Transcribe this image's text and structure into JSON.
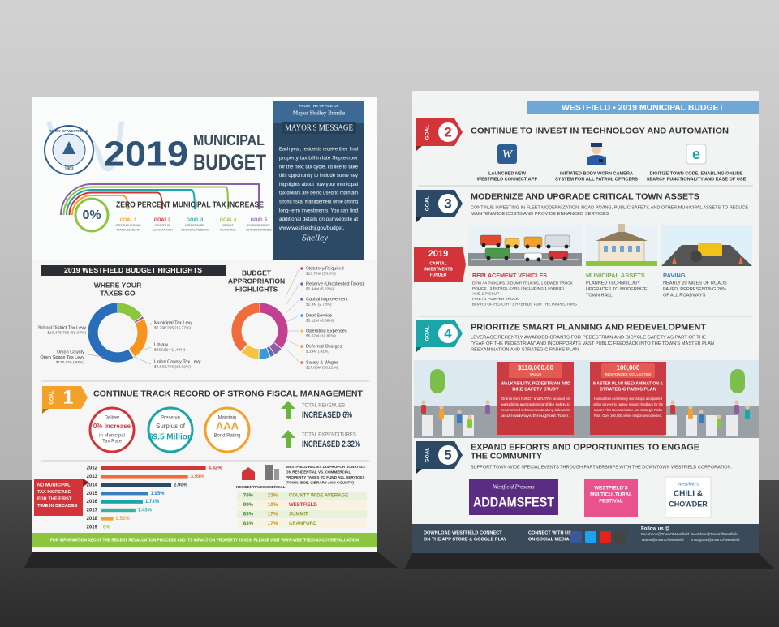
{
  "left_flyer": {
    "seal": {
      "name": "TOWN OF WESTFIELD",
      "year": "1903"
    },
    "title": {
      "year": "2019",
      "line1": "MUNICIPAL",
      "line2": "BUDGET"
    },
    "mayor_message": {
      "from": "FROM THE OFFICE OF",
      "name": "Mayor Shelley Brindle",
      "heading": "MAYOR'S MESSAGE",
      "body": [
        "Each year, residents receive their final",
        "property tax bill in late September",
        "for the next tax cycle. I'd like to take",
        "this opportunity to include some key",
        "highlights about how your municipal",
        "tax dollars are being used to maintain",
        "strong fiscal management while driving",
        "long-term investments. You can find",
        "additional details on our website at",
        "www.westfieldnj.gov/budget."
      ],
      "signature": "Shelley"
    },
    "tax_rate": {
      "badge": "0%",
      "heading": "ZERO PERCENT MUNICIPAL TAX INCREASE",
      "goals": [
        {
          "label": "GOAL 1",
          "text": [
            "STRONG FISCAL",
            "MANAGEMENT"
          ],
          "color": "#f4a12b"
        },
        {
          "label": "GOAL 2",
          "text": [
            "INVEST IN",
            "AUTOMATION"
          ],
          "color": "#d2343a"
        },
        {
          "label": "GOAL 3",
          "text": [
            "MODERNIZE",
            "CRITICAL ASSETS"
          ],
          "color": "#1aa5a8"
        },
        {
          "label": "GOAL 4",
          "text": [
            "SMART",
            "PLANNING"
          ],
          "color": "#8cc63f"
        },
        {
          "label": "GOAL 5",
          "text": [
            "ENGAGEMENT",
            "OPPORTUNITIES"
          ],
          "color": "#8e5ea8"
        }
      ]
    },
    "highlights": {
      "banner": "2019 WESTFIELD BUDGET HIGHLIGHTS",
      "taxes": {
        "title": [
          "WHERE YOUR",
          "TAXES GO"
        ],
        "items": [
          {
            "name": [
              "Municipal Tax Levy"
            ],
            "amount": "$2,796,295",
            "value": 15.77,
            "value_label": "(15.77%)",
            "color": "#8cc63f"
          },
          {
            "name": [
              "Library"
            ],
            "amount": "$263,514",
            "value": 1.49,
            "value_label": "(1.49%)",
            "color": "#9b59b6"
          },
          {
            "name": [
              "Union County Tax Levy"
            ],
            "amount": "$4,083,766",
            "value": 23.02,
            "value_label": "(23.02%)",
            "color": "#f7941d"
          },
          {
            "name": [
              "Union County",
              "Open Space Tax Levy"
            ],
            "amount": "$116,046",
            "value": 0.65,
            "value_label": "(.65%)",
            "color": "#f9d423"
          },
          {
            "name": [
              "School District Tax Levy"
            ],
            "amount": "$10,478,790",
            "value": 59.07,
            "value_label": "(59.07%)",
            "color": "#2a6ebb"
          }
        ]
      },
      "appropriations": {
        "title": [
          "BUDGET",
          "APPROPRIATION",
          "HIGHLIGHTS"
        ],
        "items": [
          {
            "name": [
              "Statutory/Required"
            ],
            "amount": "$16.72M",
            "value": 35.8,
            "value_label": "(35.8%)",
            "color": "#c2408f"
          },
          {
            "name": [
              "Reserve (Uncollected Taxes)"
            ],
            "amount": "$2.44M",
            "value": 5.22,
            "value_label": "(5.22%)",
            "color": "#8e5ea8"
          },
          {
            "name": [
              "Capital Improvement"
            ],
            "amount": "$1.3M",
            "value": 2.78,
            "value_label": "(2.78%)",
            "color": "#5b6fb5"
          },
          {
            "name": [
              "Debt Service"
            ],
            "amount": "$3.12M",
            "value": 6.68,
            "value_label": "(6.68%)",
            "color": "#3a9ad9"
          },
          {
            "name": [
              "Operating Expenses"
            ],
            "amount": "$5.07M",
            "value": 10.87,
            "value_label": "(10.87%)",
            "color": "#f6c343"
          },
          {
            "name": [
              "Deferred Charges"
            ],
            "amount": "$.19M",
            "value": 0.41,
            "value_label": "(.41%)",
            "color": "#f7941d"
          },
          {
            "name": [
              "Salary & Wages"
            ],
            "amount": "$17.85M",
            "value": 38.22,
            "value_label": "(38.22%)",
            "color": "#f26b3a"
          }
        ]
      }
    },
    "goal_1": {
      "tag": "GOAL",
      "number": "1",
      "heading": "CONTINUE TRACK RECORD OF STRONG FISCAL MANAGEMENT",
      "stats": [
        {
          "top": "Deliver",
          "main": "0% Increase",
          "bottom": [
            "in Municipal",
            "Tax Rate"
          ],
          "color": "#d2343a"
        },
        {
          "top": "Preserve",
          "main": "Surplus of",
          "bottom": [
            "$9.5 Million"
          ],
          "color": "#1aa5a8"
        },
        {
          "top": "Maintain",
          "main": "AAA",
          "bottom": [
            "Bond Rating"
          ],
          "color": "#f4a12b"
        }
      ],
      "totals": [
        {
          "label": "TOTAL REVENUES",
          "value": "INCREASED 6%"
        },
        {
          "label": "TOTAL EXPENDITURES",
          "value": "INCREASED 2.32%"
        }
      ]
    },
    "tax_history": {
      "note": [
        "NO MUNICIPAL",
        "TAX INCREASE",
        "FOR THE FIRST",
        "TIME IN DECADES"
      ],
      "categories": [
        "2012",
        "2013",
        "2014",
        "2015",
        "2016",
        "2017",
        "2018",
        "2019"
      ],
      "values": [
        4.32,
        3.59,
        2.9,
        1.95,
        1.73,
        1.43,
        0.52,
        0
      ],
      "value_labels": [
        "4.32%",
        "3.59%",
        "2.90%",
        "1.95%",
        "1.73%",
        "1.43%",
        "0.52%",
        "0%"
      ],
      "colors": [
        "#d2343a",
        "#f26b3a",
        "#2c4a66",
        "#3a7cc0",
        "#1aa5a8",
        "#3ab0a0",
        "#f4a12b",
        "#8cc63f"
      ]
    },
    "property_tax": {
      "note": [
        "WESTFIELD RELIES DISPROPORTIONATELY",
        "ON RESIDENTIAL VS. COMMERCIAL",
        "PROPERTY TAXES TO FUND ALL SERVICES",
        "(TOWN, BOE, LIBRARY AND COUNTY)"
      ],
      "headers": [
        "RESIDENTIAL",
        "COMMERCIAL"
      ],
      "rows": [
        [
          "76%",
          "23%",
          "COUNTY WIDE AVERAGE"
        ],
        [
          "90%",
          "10%",
          "WESTFIELD"
        ],
        [
          "83%",
          "17%",
          "SUMMIT"
        ],
        [
          "83%",
          "17%",
          "CRANFORD"
        ]
      ]
    },
    "footer": "FOR INFORMATION ABOUT THE RECENT REVALUATION PROCESS AND ITS IMPACT ON PROPERTY TAXES, PLEASE VISIT WWW.WESTFIELDNJ.GOV/REVALUATION"
  },
  "right_flyer": {
    "header": "WESTFIELD • 2019 MUNICIPAL BUDGET",
    "goal_2": {
      "tag": "GOAL",
      "number": "2",
      "heading": "CONTINUE TO INVEST IN TECHNOLOGY AND AUTOMATION",
      "items": [
        {
          "icon": "W",
          "text": [
            "LAUNCHED NEW",
            "WESTFIELD CONNECT APP"
          ]
        },
        {
          "text": [
            "INITIATED BODY-WORN CAMERA",
            "SYSTEM FOR ALL PATROL OFFICERS"
          ]
        },
        {
          "icon": "e",
          "text": [
            "DIGITIZE TOWN CODE, ENABLING ONLINE",
            "SEARCH FUNCTIONALITY AND EASE OF USE"
          ]
        }
      ]
    },
    "goal_3": {
      "tag": "GOAL",
      "number": "3",
      "heading": "MODERNIZE AND UPGRADE CRITICAL TOWN ASSETS",
      "text": [
        "CONTINUE INVESTING IN FLEET MODERNIZATION, ROAD PAVING, PUBLIC SAFETY, AND OTHER MUNICIPAL ASSETS TO REDUCE",
        "MAINTENANCE COSTS AND PROVIDE ENHANCED SERVICES."
      ],
      "badge": [
        "2019",
        "CAPITAL",
        "INVESTMENTS",
        "FUNDED"
      ],
      "vehicles": {
        "title": "REPLACEMENT VEHICLES",
        "lines": [
          "DPW / 4 PICKUPS, 3 DUMP TRUCKS, 1 SEWER TRUCK",
          "POLICE / 3 PATROL CARS (INCLUDING 1 HYBRID)",
          "AND 1 PICKUP",
          "FIRE / 1 PUMPER TRUCK",
          "BOARD OF HEALTH / 3 HYBRIDS FOR THE INSPECTORS"
        ]
      },
      "assets": {
        "title": "MUNICIPAL ASSETS",
        "lines": [
          "PLANNED TECHNOLOGY",
          "UPGRADES TO MODERNIZE",
          "TOWN HALL"
        ]
      },
      "paving": {
        "title": "PAVING",
        "lines": [
          "NEARLY 20 MILES OF ROADS",
          "PAVED, REPRESENTING 20%",
          "OF ALL ROADWAYS"
        ]
      }
    },
    "goal_4": {
      "tag": "GOAL",
      "number": "4",
      "heading": "PRIORITIZE SMART PLANNING AND REDEVELOPMENT",
      "text": [
        "LEVERAGE RECENTLY AWARDED GRANTS FOR PEDESTRIAN AND BICYCLE SAFETY AS PART OF THE",
        "\"YEAR OF THE PEDESTRIAN\" AND INCORPORATE VAST PUBLIC FEEDBACK INTO THE TOWN'S MASTER PLAN",
        "REEXAMINATION AND STRATEGIC PARKS PLAN."
      ],
      "boxes": [
        {
          "figure": "$110,000.00",
          "caption": "VALUE",
          "title": [
            "WALKABILITY, PEDESTRIAN AND",
            "BIKE SAFETY STUDY"
          ],
          "body": [
            "Grants from NJDOT and NJTPA focused on",
            "walkability and pedestrian/bike safety to",
            "recommend enhancements along sidewalks",
            "and roadways throughout Town."
          ]
        },
        {
          "figure": "100,000",
          "caption": "RESPONSES COLLECTED",
          "title": [
            "MASTER PLAN REEXAMINATION &",
            "STRATEGIC PARKS PLAN"
          ],
          "body": [
            "Hosted four community workshops and posted",
            "online surveys to capture resident feedback for the",
            "Master Plan Reexamination and Strategic Parks",
            "Plan. Over 100,000 online responses collected."
          ]
        }
      ]
    },
    "goal_5": {
      "tag": "GOAL",
      "number": "5",
      "heading": [
        "EXPAND EFFORTS AND OPPORTUNITIES TO ENGAGE",
        "THE COMMUNITY"
      ],
      "text": "SUPPORT TOWN-WIDE SPECIAL EVENTS THROUGH PARTNERSHIPS WITH THE DOWNTOWN WESTFIELD CORPORATION.",
      "events": [
        {
          "lines": [
            "Westfield Presents",
            "ADDAMSFEST"
          ]
        },
        {
          "lines": [
            "WESTFIELD'S",
            "MULTICULTURAL",
            "FESTIVAL"
          ]
        },
        {
          "lines": [
            "Westfield's",
            "CHILI &",
            "CHOWDER"
          ]
        }
      ]
    },
    "footer": {
      "app": [
        "DOWNLOAD WESTFIELD CONNECT",
        "ON THE APP STORE & GOOGLE PLAY"
      ],
      "social": [
        "CONNECT WITH US",
        "ON SOCIAL MEDIA"
      ],
      "follow": "Follow us @",
      "handles": [
        "Facebook@TownOfWestfield",
        "Twitter@TownOfWestfield",
        "Nextdoor@TownOfWestfield",
        "Instagram@TownOfWestfield"
      ]
    }
  }
}
